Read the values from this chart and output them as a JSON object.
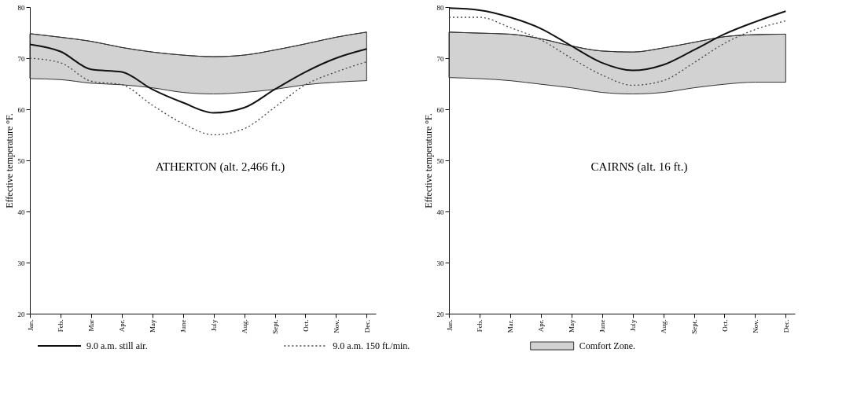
{
  "chart_data": [
    {
      "type": "line",
      "title": "ATHERTON (alt. 2,466 ft.)",
      "ylabel": "Effective temperature °F.",
      "categories": [
        "Jan.",
        "Feb.",
        "Mar",
        "Apr.",
        "May",
        "June",
        "July",
        "Aug.",
        "Sept.",
        "Oct.",
        "Nov.",
        "Dec."
      ],
      "ylim": [
        20,
        80
      ],
      "yticks": [
        20,
        30,
        40,
        50,
        60,
        70,
        80
      ],
      "grid": false,
      "legend": "bottom",
      "series": [
        {
          "name": "9.0 a.m. still air.",
          "color": "#111111",
          "line_style": "solid",
          "values": [
            72.7,
            71.3,
            67.8,
            67.3,
            63.9,
            61.3,
            59.3,
            60.3,
            63.9,
            67.3,
            70.0,
            71.8
          ]
        },
        {
          "name": "9.0 a.m. 150 ft./min.",
          "color": "#444444",
          "line_style": "dotted",
          "values": [
            70.0,
            69.1,
            65.5,
            64.8,
            60.8,
            57.2,
            55.0,
            56.2,
            60.4,
            64.8,
            67.3,
            69.3
          ]
        },
        {
          "name": "Comfort Zone.",
          "color": "#333333",
          "values": [
            74.8,
            74.1,
            73.3,
            72.1,
            71.2,
            70.6,
            70.3,
            70.6,
            71.6,
            72.8,
            74.1,
            75.1
          ],
          "upper": [
            74.8,
            74.1,
            73.3,
            72.1,
            71.2,
            70.6,
            70.3,
            70.6,
            71.6,
            72.8,
            74.1,
            75.1
          ],
          "lower": [
            66.0,
            65.8,
            65.1,
            64.8,
            64.2,
            63.3,
            63.0,
            63.3,
            63.9,
            64.8,
            65.3,
            65.6
          ]
        }
      ]
    },
    {
      "type": "line",
      "title": "CAIRNS (alt. 16 ft.)",
      "ylabel": "Effective temperature °F.",
      "categories": [
        "Jan.",
        "Feb.",
        "Mar.",
        "Apr.",
        "May",
        "June",
        "July",
        "Aug.",
        "Sept.",
        "Oct.",
        "Nov.",
        "Dec."
      ],
      "ylim": [
        20,
        80
      ],
      "yticks": [
        20,
        30,
        40,
        50,
        60,
        70,
        80
      ],
      "grid": false,
      "series": [
        {
          "color": "#111111",
          "line_style": "solid",
          "values": [
            79.8,
            79.4,
            78.0,
            75.8,
            72.4,
            69.1,
            67.6,
            68.7,
            71.6,
            74.7,
            77.1,
            79.2
          ]
        },
        {
          "color": "#444444",
          "line_style": "dotted",
          "values": [
            78.0,
            78.0,
            76.0,
            73.6,
            70.0,
            66.7,
            64.7,
            65.6,
            69.1,
            72.9,
            75.6,
            77.3
          ]
        },
        {
          "color": "#333333",
          "values": [
            75.1,
            74.9,
            74.7,
            73.8,
            72.4,
            71.4,
            71.2,
            72.0,
            73.1,
            74.2,
            74.6,
            74.7
          ],
          "upper": [
            75.1,
            74.9,
            74.7,
            73.8,
            72.4,
            71.4,
            71.2,
            72.0,
            73.1,
            74.2,
            74.6,
            74.7
          ],
          "lower": [
            66.2,
            66.0,
            65.6,
            64.9,
            64.2,
            63.3,
            63.0,
            63.3,
            64.2,
            64.9,
            65.3,
            65.3
          ]
        }
      ]
    }
  ]
}
